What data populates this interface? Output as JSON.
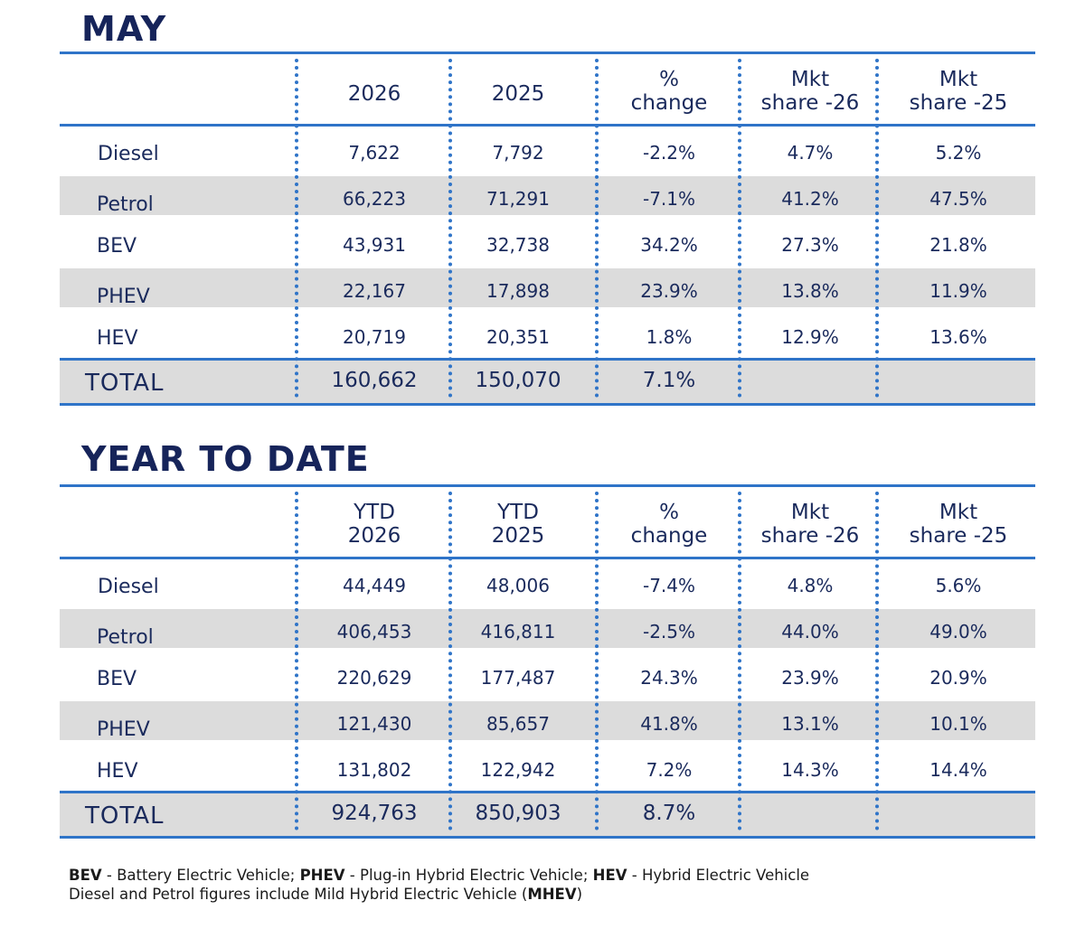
{
  "may": {
    "title": "MAY",
    "headers": [
      "",
      "2026",
      "2025",
      "%\nchange",
      "Mkt\nshare -26",
      "Mkt\nshare -25"
    ],
    "rows": [
      {
        "label": "Diesel",
        "values": [
          "7,622",
          "7,792",
          "-2.2%",
          "4.7%",
          "5.2%"
        ]
      },
      {
        "label": "Petrol",
        "values": [
          "66,223",
          "71,291",
          "-7.1%",
          "41.2%",
          "47.5%"
        ]
      },
      {
        "label": "BEV",
        "values": [
          "43,931",
          "32,738",
          "34.2%",
          "27.3%",
          "21.8%"
        ]
      },
      {
        "label": "PHEV",
        "values": [
          "22,167",
          "17,898",
          "23.9%",
          "13.8%",
          "11.9%"
        ]
      },
      {
        "label": "HEV",
        "values": [
          "20,719",
          "20,351",
          "1.8%",
          "12.9%",
          "13.6%"
        ]
      }
    ],
    "total": {
      "label": "TOTAL",
      "values": [
        "160,662",
        "150,070",
        "7.1%",
        "",
        ""
      ]
    }
  },
  "ytd": {
    "title": "YEAR TO DATE",
    "headers": [
      "",
      "YTD\n2026",
      "YTD\n2025",
      "%\nchange",
      "Mkt\nshare -26",
      "Mkt\nshare -25"
    ],
    "rows": [
      {
        "label": "Diesel",
        "values": [
          "44,449",
          "48,006",
          "-7.4%",
          "4.8%",
          "5.6%"
        ]
      },
      {
        "label": "Petrol",
        "values": [
          "406,453",
          "416,811",
          "-2.5%",
          "44.0%",
          "49.0%"
        ]
      },
      {
        "label": "BEV",
        "values": [
          "220,629",
          "177,487",
          "24.3%",
          "23.9%",
          "20.9%"
        ]
      },
      {
        "label": "PHEV",
        "values": [
          "121,430",
          "85,657",
          "41.8%",
          "13.1%",
          "10.1%"
        ]
      },
      {
        "label": "HEV",
        "values": [
          "131,802",
          "122,942",
          "7.2%",
          "14.3%",
          "14.4%"
        ]
      }
    ],
    "total": {
      "label": "TOTAL",
      "values": [
        "924,763",
        "850,903",
        "8.7%",
        "",
        ""
      ]
    }
  },
  "footer": {
    "line1": [
      {
        "bold": "BEV",
        "text": " - Battery Electric Vehicle; "
      },
      {
        "bold": "PHEV",
        "text": " - Plug-in Hybrid Electric Vehicle; "
      },
      {
        "bold": "HEV",
        "text": " - Hybrid Electric Vehicle"
      }
    ],
    "line2_text": "Diesel and Petrol figures include Mild Hybrid Electric Vehicle (",
    "line2_bold": "MHEV",
    "line2_end": ")"
  },
  "colors": {
    "accent": "#2f74c8",
    "text": "#1a2a5c",
    "band": "#dcdcdc"
  }
}
